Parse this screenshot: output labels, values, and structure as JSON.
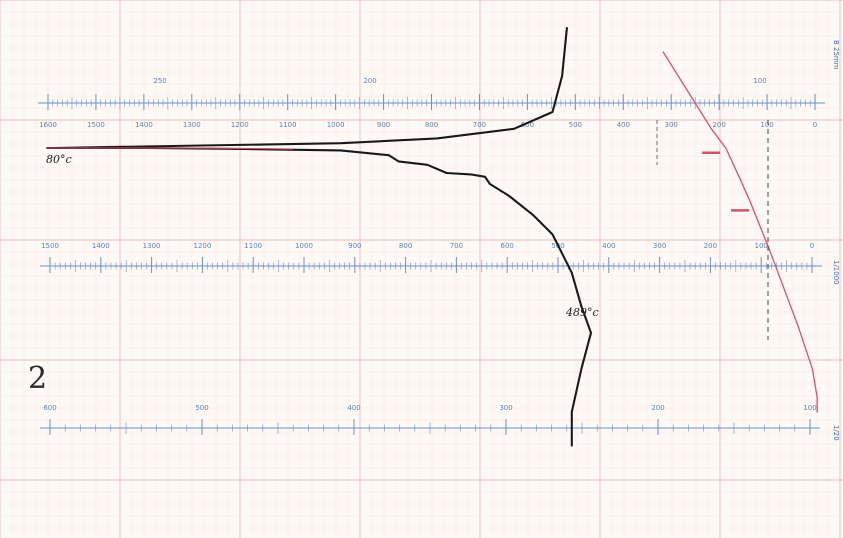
{
  "chart_data": {
    "type": "line",
    "title": "",
    "figure_label": "2",
    "grid": true,
    "colors": {
      "paper": "#fdfaf6",
      "grid_major": "#f0b9b9",
      "grid_minor": "#f8dede",
      "scale": "#6b8fc4",
      "cooling_curve": "#1a1a1a",
      "derivative_curve": "#d9506a"
    },
    "scales": [
      {
        "name": "scale-1",
        "tick_labels": [
          "1600",
          "1500",
          "1400",
          "1300",
          "1200",
          "1100",
          "1000",
          "900",
          "800",
          "700",
          "600",
          "500",
          "400",
          "300",
          "200",
          "100",
          "0"
        ],
        "secondary_labels": [
          "250",
          "200",
          "100"
        ]
      },
      {
        "name": "scale-2",
        "tick_labels": [
          "1500",
          "1400",
          "1300",
          "1200",
          "1100",
          "1000",
          "900",
          "800",
          "700",
          "600",
          "500",
          "400",
          "300",
          "200",
          "100",
          "0"
        ]
      },
      {
        "name": "scale-3",
        "tick_labels": [
          "600",
          "500",
          "400",
          "300",
          "200",
          "100"
        ]
      }
    ],
    "annotations": [
      {
        "text": "80°c",
        "x": 1580,
        "y": 0.0
      },
      {
        "text": "489°c",
        "x": 480,
        "y": 6.5
      }
    ],
    "side_labels": [
      "B 25mm",
      "1/1000",
      "1/20"
    ],
    "x_range": [
      1600,
      0
    ],
    "y_range": [
      -2,
      10
    ],
    "series": [
      {
        "key": "cooling_curve",
        "points": [
          [
            1610,
            0.0
          ],
          [
            1400,
            0.0
          ],
          [
            1200,
            0.02
          ],
          [
            1000,
            0.05
          ],
          [
            900,
            0.15
          ],
          [
            880,
            0.28
          ],
          [
            820,
            0.35
          ],
          [
            780,
            0.52
          ],
          [
            730,
            0.55
          ],
          [
            700,
            0.6
          ],
          [
            690,
            0.75
          ],
          [
            650,
            1.0
          ],
          [
            600,
            1.4
          ],
          [
            560,
            1.8
          ],
          [
            520,
            2.6
          ],
          [
            500,
            3.3
          ],
          [
            480,
            3.85
          ],
          [
            500,
            4.6
          ],
          [
            520,
            5.5
          ],
          [
            520,
            6.2
          ]
        ],
        "upper_branch": [
          [
            1000,
            -0.1
          ],
          [
            800,
            -0.2
          ],
          [
            640,
            -0.4
          ],
          [
            560,
            -0.75
          ],
          [
            540,
            -1.5
          ],
          [
            530,
            -2.5
          ]
        ]
      },
      {
        "key": "derivative_curve",
        "points": [
          [
            330,
            -2.0
          ],
          [
            230,
            -0.4
          ],
          [
            200,
            0.0
          ],
          [
            170,
            0.65
          ],
          [
            150,
            1.1
          ],
          [
            110,
            2.1
          ],
          [
            80,
            2.9
          ],
          [
            50,
            3.7
          ],
          [
            20,
            4.6
          ],
          [
            10,
            5.2
          ],
          [
            10,
            5.5
          ]
        ],
        "markers": [
          [
            220,
            0.1
          ],
          [
            160,
            1.3
          ]
        ]
      }
    ]
  }
}
